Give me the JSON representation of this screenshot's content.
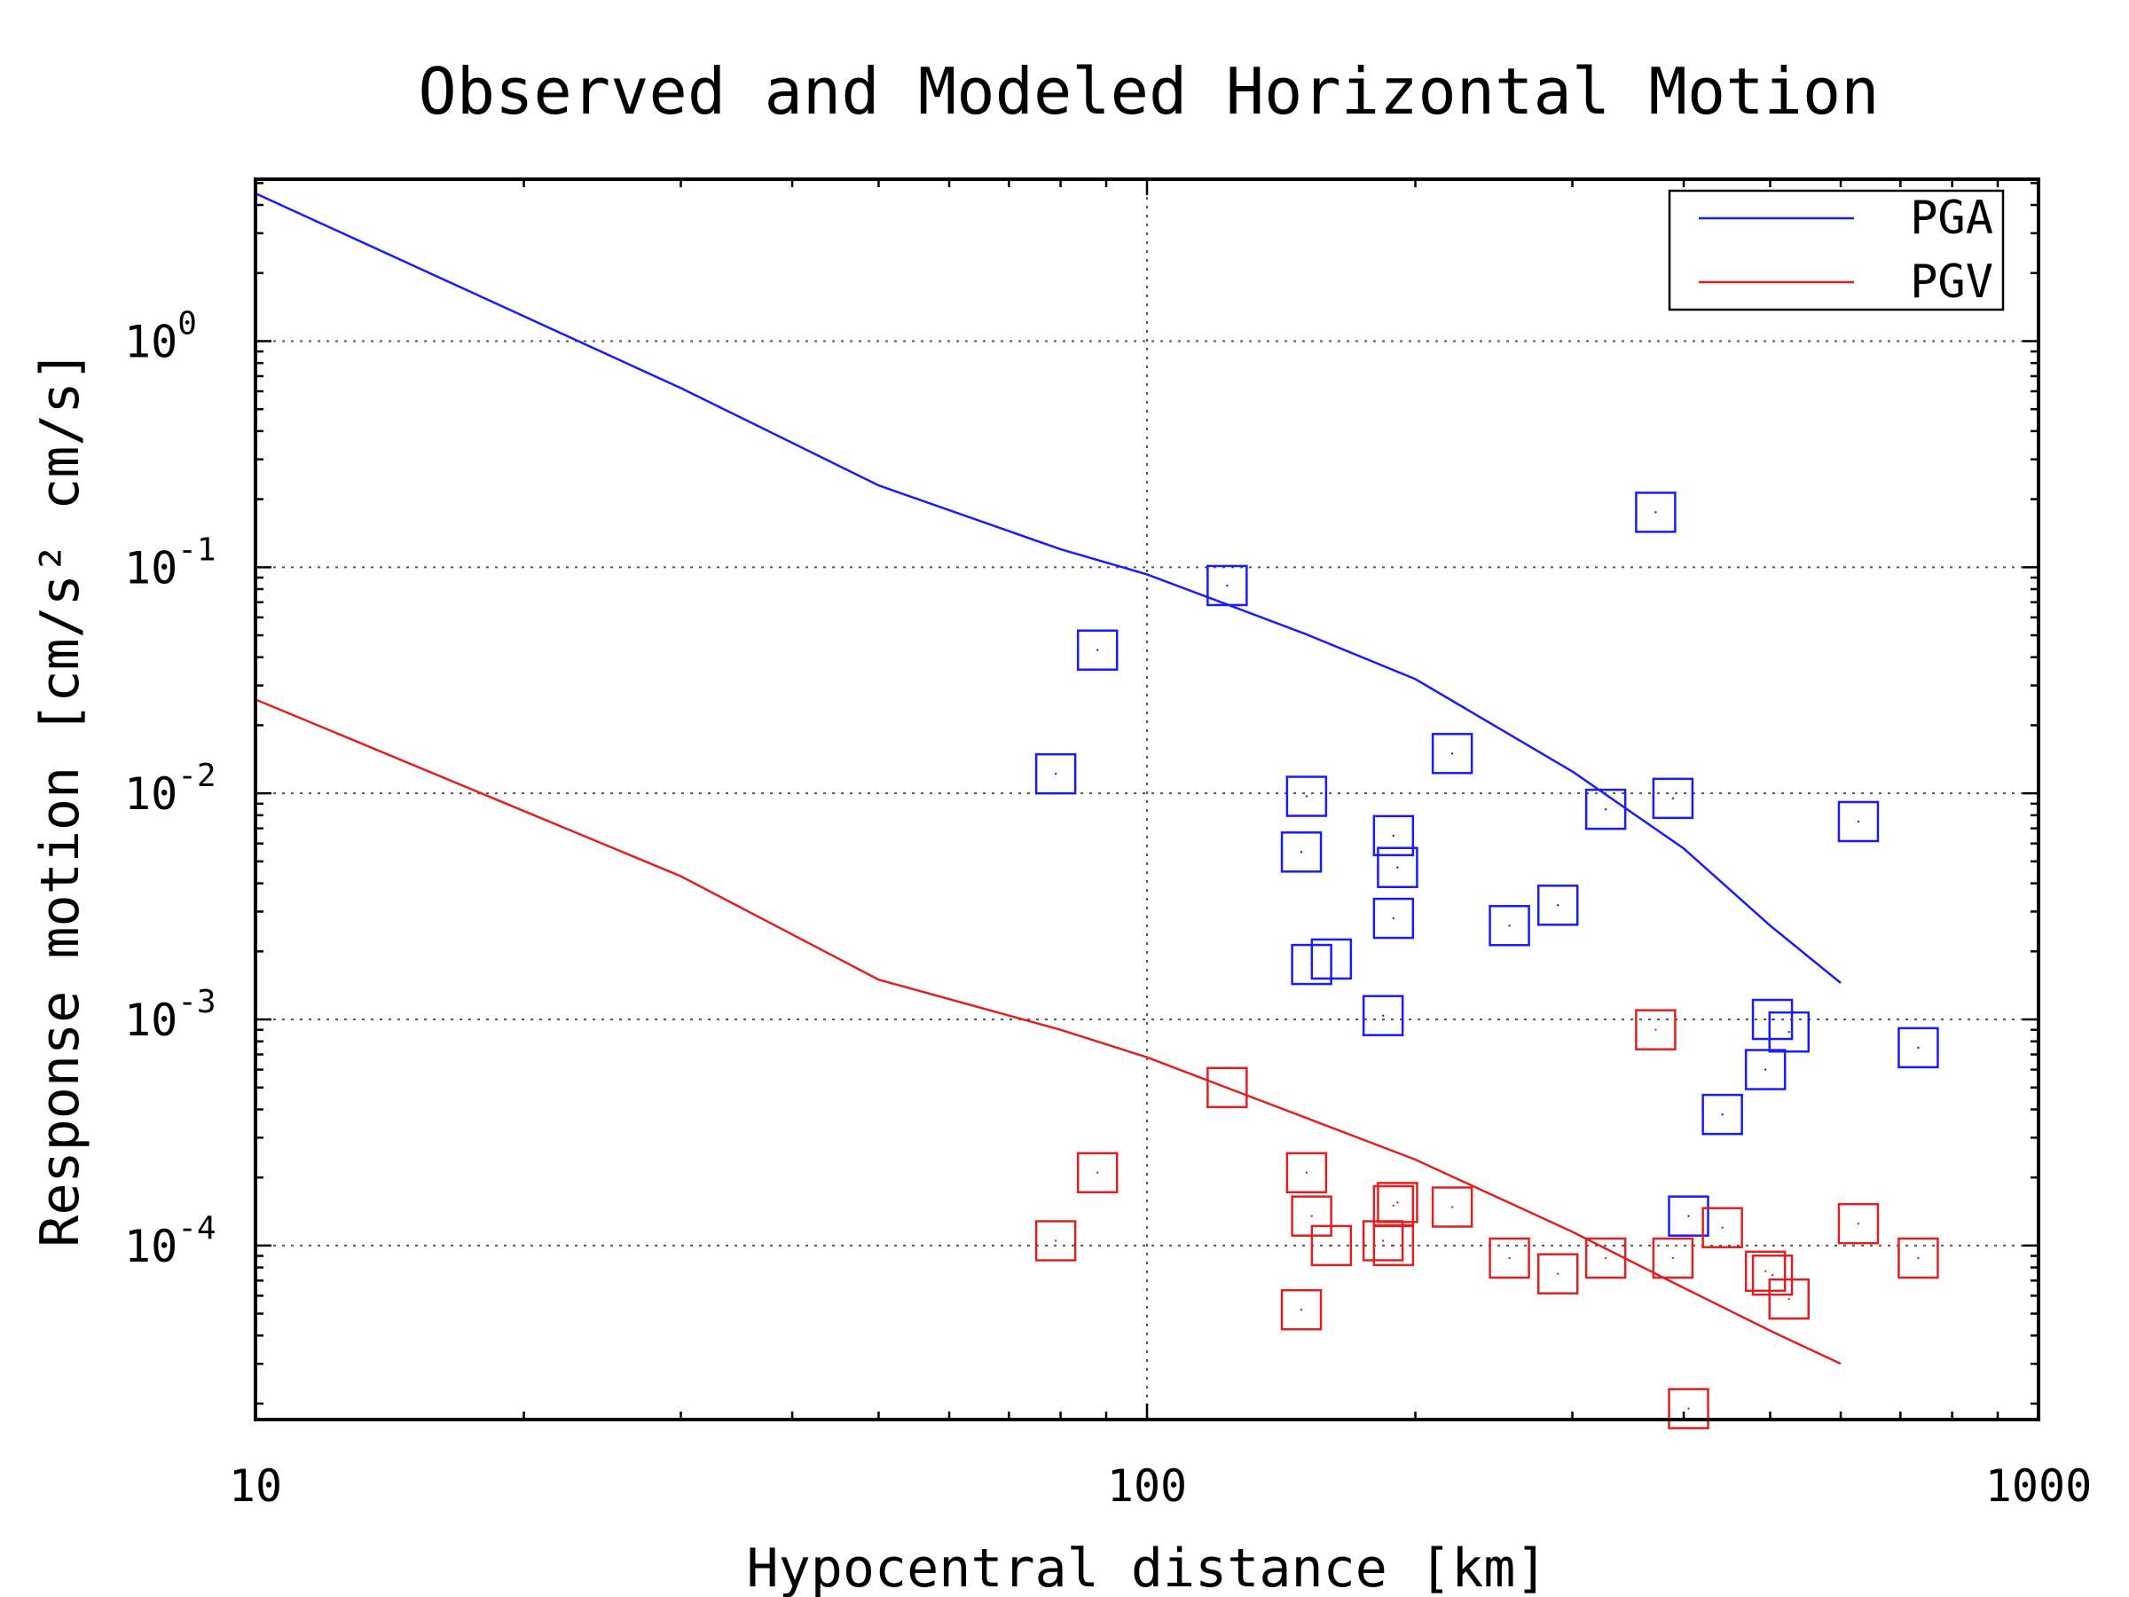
{
  "chart_data": {
    "type": "scatter",
    "title": "Observed and Modeled Horizontal Motion",
    "xlabel": "Hypocentral distance [km]",
    "ylabel": "Response motion [cm/s² cm/s]",
    "xscale": "log",
    "yscale": "log",
    "xlim": [
      10,
      1000
    ],
    "ylim": [
      1.7e-05,
      5.2
    ],
    "x_ticks": [
      {
        "value": 10,
        "label": "10"
      },
      {
        "value": 100,
        "label": "100"
      },
      {
        "value": 1000,
        "label": "1000"
      }
    ],
    "y_ticks": [
      {
        "value": 1,
        "mantissa": "10",
        "exponent": "0"
      },
      {
        "value": 0.1,
        "mantissa": "10",
        "exponent": "-1"
      },
      {
        "value": 0.01,
        "mantissa": "10",
        "exponent": "-2"
      },
      {
        "value": 0.001,
        "mantissa": "10",
        "exponent": "-3"
      },
      {
        "value": 0.0001,
        "mantissa": "10",
        "exponent": "-4"
      }
    ],
    "grid": true,
    "legend_position": "top-right",
    "colors": {
      "PGA": "#1a1aff",
      "PGV": "#e02020"
    },
    "series": [
      {
        "name": "PGA",
        "kind": "line",
        "color": "#1a1aff",
        "x": [
          10,
          30,
          50,
          80,
          100,
          150,
          200,
          300,
          400,
          500,
          600
        ],
        "y": [
          4.5,
          0.62,
          0.23,
          0.12,
          0.093,
          0.051,
          0.032,
          0.0125,
          0.0057,
          0.0026,
          0.00145
        ]
      },
      {
        "name": "PGV",
        "kind": "line",
        "color": "#e02020",
        "x": [
          10,
          30,
          50,
          80,
          100,
          150,
          200,
          300,
          400,
          500,
          600
        ],
        "y": [
          0.026,
          0.0043,
          0.0015,
          0.0009,
          0.00068,
          0.00037,
          0.00024,
          0.000115,
          6.5e-05,
          4.2e-05,
          3e-05
        ]
      },
      {
        "name": "PGA",
        "kind": "points",
        "color": "#1a1aff",
        "points": [
          [
            79,
            0.0122
          ],
          [
            88,
            0.043
          ],
          [
            123,
            0.083
          ],
          [
            149,
            0.0055
          ],
          [
            151,
            0.0097
          ],
          [
            153,
            0.00175
          ],
          [
            161,
            0.00185
          ],
          [
            184,
            0.00104
          ],
          [
            189,
            0.0065
          ],
          [
            189,
            0.0028
          ],
          [
            191,
            0.0047
          ],
          [
            220,
            0.015
          ],
          [
            255,
            0.0026
          ],
          [
            289,
            0.0032
          ],
          [
            327,
            0.0085
          ],
          [
            372,
            0.175
          ],
          [
            389,
            0.0095
          ],
          [
            405,
            0.000135
          ],
          [
            442,
            0.00038
          ],
          [
            494,
            0.0006
          ],
          [
            503,
            0.001
          ],
          [
            525,
            0.00088
          ],
          [
            628,
            0.0075
          ],
          [
            733,
            0.00075
          ]
        ]
      },
      {
        "name": "PGV",
        "kind": "points",
        "color": "#e02020",
        "points": [
          [
            79,
            0.000105
          ],
          [
            88,
            0.00021
          ],
          [
            123,
            0.0005
          ],
          [
            149,
            5.2e-05
          ],
          [
            151,
            0.00021
          ],
          [
            153,
            0.000135
          ],
          [
            161,
            0.0001
          ],
          [
            184,
            0.000105
          ],
          [
            189,
            0.0001
          ],
          [
            189,
            0.00015
          ],
          [
            191,
            0.000155
          ],
          [
            220,
            0.000148
          ],
          [
            255,
            8.8e-05
          ],
          [
            289,
            7.5e-05
          ],
          [
            327,
            8.8e-05
          ],
          [
            372,
            0.0009
          ],
          [
            389,
            8.8e-05
          ],
          [
            405,
            1.9e-05
          ],
          [
            442,
            0.00012
          ],
          [
            494,
            7.7e-05
          ],
          [
            503,
            7.4e-05
          ],
          [
            525,
            5.8e-05
          ],
          [
            628,
            0.000125
          ],
          [
            733,
            8.8e-05
          ]
        ]
      }
    ],
    "legend": [
      {
        "label": "PGA",
        "color": "#1a1aff"
      },
      {
        "label": "PGV",
        "color": "#e02020"
      }
    ]
  }
}
